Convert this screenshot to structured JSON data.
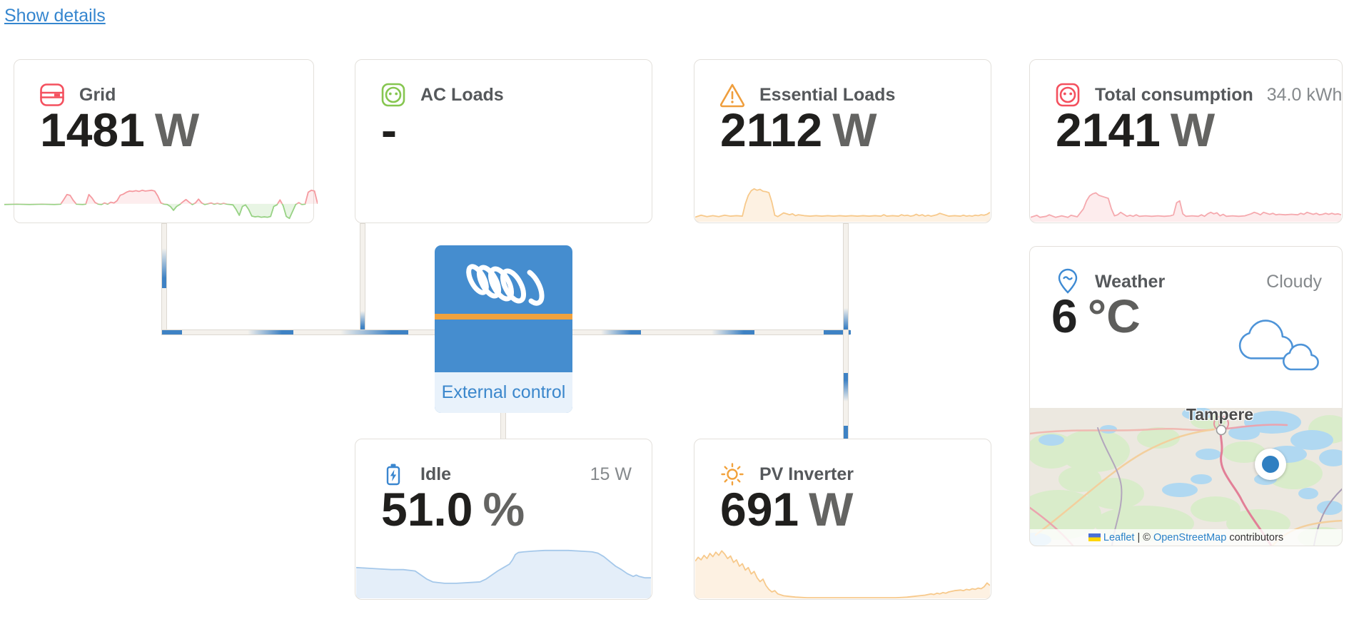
{
  "page": {
    "show_details": "Show details"
  },
  "cards": {
    "grid": {
      "title": "Grid",
      "value": "1481",
      "unit": "W"
    },
    "ac_loads": {
      "title": "AC Loads",
      "value": "-"
    },
    "essential_loads": {
      "title": "Essential Loads",
      "value": "2112",
      "unit": "W"
    },
    "total_consumption": {
      "title": "Total consumption",
      "secondary": "34.0 kWh",
      "value": "2141",
      "unit": "W"
    },
    "weather": {
      "title": "Weather",
      "condition": "Cloudy",
      "temp": "6",
      "temp_unit": "°C"
    },
    "idle": {
      "title": "Idle",
      "secondary": "15 W",
      "value": "51.0",
      "unit": "%"
    },
    "pv_inverter": {
      "title": "PV Inverter",
      "value": "691",
      "unit": "W"
    }
  },
  "inverter": {
    "label": "External control"
  },
  "map": {
    "city_label": "Tampere",
    "attribution": {
      "leaflet": "Leaflet",
      "separator": "| ©",
      "osm": "OpenStreetMap",
      "contributors": "contributors"
    }
  },
  "icons": {
    "grid": "distribution-panel",
    "ac_loads": "power-socket",
    "essential_loads": "warning-triangle",
    "total_consumption": "power-socket",
    "weather": "location-pin",
    "idle": "battery-bolt",
    "pv_inverter": "sun",
    "weather_graphic": "clouds",
    "inverter": "victron-coil-logo",
    "attribution_flag": "ukraine-flag"
  },
  "colors": {
    "link_blue": "#3586cf",
    "victron_blue": "#458dcf",
    "flow_blue": "#3e82c4",
    "grid_red": "#f4505e",
    "loads_green": "#86c650",
    "warning_orange": "#f0a13e",
    "sun_orange": "#f2a23c",
    "battery_blue": "#3a86cf",
    "stripe_orange": "#f0a23e"
  },
  "sparklines": {
    "grid": {
      "baseline": 55,
      "above": {
        "line": "#f59aa0",
        "fill": "rgba(245,154,160,0.18)"
      },
      "below": {
        "line": "#97d284",
        "fill": "rgba(151,210,132,0.22)"
      },
      "points": [
        [
          0,
          57
        ],
        [
          4,
          56
        ],
        [
          8,
          57
        ],
        [
          12,
          56
        ],
        [
          16,
          57
        ],
        [
          18,
          56
        ],
        [
          19,
          44
        ],
        [
          20,
          31
        ],
        [
          21,
          33
        ],
        [
          22,
          46
        ],
        [
          23,
          56
        ],
        [
          25,
          57
        ],
        [
          26,
          56
        ],
        [
          27,
          31
        ],
        [
          28,
          40
        ],
        [
          29,
          52
        ],
        [
          30,
          56
        ],
        [
          31,
          57
        ],
        [
          32,
          53
        ],
        [
          33,
          56
        ],
        [
          34,
          51
        ],
        [
          35,
          53
        ],
        [
          36,
          47
        ],
        [
          37,
          33
        ],
        [
          38,
          30
        ],
        [
          39,
          25
        ],
        [
          40,
          22
        ],
        [
          41,
          23
        ],
        [
          42,
          21
        ],
        [
          43,
          23
        ],
        [
          44,
          20
        ],
        [
          45,
          22
        ],
        [
          46,
          21
        ],
        [
          47,
          20
        ],
        [
          48,
          22
        ],
        [
          49,
          35
        ],
        [
          50,
          53
        ],
        [
          51,
          56
        ],
        [
          52,
          57
        ],
        [
          53,
          62
        ],
        [
          54,
          72
        ],
        [
          55,
          62
        ],
        [
          56,
          57
        ],
        [
          57,
          50
        ],
        [
          58,
          44
        ],
        [
          59,
          51
        ],
        [
          60,
          57
        ],
        [
          61,
          53
        ],
        [
          62,
          43
        ],
        [
          63,
          53
        ],
        [
          64,
          57
        ],
        [
          65,
          55
        ],
        [
          66,
          53
        ],
        [
          67,
          56
        ],
        [
          68,
          54
        ],
        [
          69,
          56
        ],
        [
          70,
          54
        ],
        [
          71,
          56
        ],
        [
          72,
          57
        ],
        [
          73,
          58
        ],
        [
          74,
          70
        ],
        [
          75,
          85
        ],
        [
          76,
          62
        ],
        [
          77,
          58
        ],
        [
          78,
          70
        ],
        [
          79,
          87
        ],
        [
          80,
          89
        ],
        [
          81,
          88
        ],
        [
          82,
          90
        ],
        [
          83,
          89
        ],
        [
          84,
          90
        ],
        [
          85,
          88
        ],
        [
          86,
          62
        ],
        [
          87,
          58
        ],
        [
          88,
          45
        ],
        [
          89,
          60
        ],
        [
          90,
          88
        ],
        [
          91,
          93
        ],
        [
          92,
          75
        ],
        [
          93,
          57
        ],
        [
          94,
          52
        ],
        [
          95,
          57
        ],
        [
          96,
          56
        ],
        [
          97,
          25
        ],
        [
          98,
          20
        ],
        [
          99,
          22
        ],
        [
          100,
          55
        ]
      ]
    },
    "essential": {
      "line": "#f7c98b",
      "fill": "rgba(247,201,139,0.25)",
      "points": [
        [
          0,
          90
        ],
        [
          2,
          86
        ],
        [
          4,
          89
        ],
        [
          6,
          87
        ],
        [
          8,
          89
        ],
        [
          10,
          86
        ],
        [
          12,
          88
        ],
        [
          14,
          87
        ],
        [
          16,
          88
        ],
        [
          17,
          62
        ],
        [
          18,
          44
        ],
        [
          19,
          34
        ],
        [
          20,
          30
        ],
        [
          21,
          33
        ],
        [
          22,
          31
        ],
        [
          23,
          35
        ],
        [
          24,
          36
        ],
        [
          25,
          38
        ],
        [
          26,
          58
        ],
        [
          27,
          86
        ],
        [
          28,
          89
        ],
        [
          29,
          85
        ],
        [
          30,
          81
        ],
        [
          31,
          83
        ],
        [
          32,
          85
        ],
        [
          33,
          83
        ],
        [
          34,
          87
        ],
        [
          35,
          85
        ],
        [
          37,
          87
        ],
        [
          39,
          88
        ],
        [
          41,
          87
        ],
        [
          43,
          88
        ],
        [
          45,
          87
        ],
        [
          47,
          88
        ],
        [
          49,
          87
        ],
        [
          51,
          88
        ],
        [
          53,
          87
        ],
        [
          55,
          88
        ],
        [
          57,
          87
        ],
        [
          59,
          88
        ],
        [
          61,
          87
        ],
        [
          63,
          88
        ],
        [
          64,
          85
        ],
        [
          65,
          88
        ],
        [
          67,
          87
        ],
        [
          69,
          88
        ],
        [
          70,
          85
        ],
        [
          71,
          87
        ],
        [
          72,
          86
        ],
        [
          73,
          88
        ],
        [
          74,
          87
        ],
        [
          75,
          84
        ],
        [
          76,
          87
        ],
        [
          77,
          85
        ],
        [
          78,
          88
        ],
        [
          79,
          86
        ],
        [
          80,
          88
        ],
        [
          82,
          85
        ],
        [
          83,
          82
        ],
        [
          84,
          84
        ],
        [
          85,
          86
        ],
        [
          86,
          88
        ],
        [
          88,
          87
        ],
        [
          90,
          88
        ],
        [
          91,
          86
        ],
        [
          92,
          88
        ],
        [
          93,
          87
        ],
        [
          94,
          88
        ],
        [
          95,
          86
        ],
        [
          96,
          87
        ],
        [
          97,
          85
        ],
        [
          98,
          86
        ],
        [
          99,
          84
        ],
        [
          100,
          80
        ]
      ]
    },
    "total": {
      "line": "#f5a9ae",
      "fill": "rgba(245,169,174,0.22)",
      "points": [
        [
          0,
          91
        ],
        [
          2,
          87
        ],
        [
          3,
          91
        ],
        [
          5,
          89
        ],
        [
          6,
          86
        ],
        [
          8,
          91
        ],
        [
          10,
          88
        ],
        [
          12,
          91
        ],
        [
          13,
          87
        ],
        [
          15,
          90
        ],
        [
          16,
          82
        ],
        [
          17,
          74
        ],
        [
          18,
          58
        ],
        [
          19,
          48
        ],
        [
          20,
          44
        ],
        [
          21,
          42
        ],
        [
          22,
          47
        ],
        [
          23,
          49
        ],
        [
          24,
          51
        ],
        [
          25,
          53
        ],
        [
          26,
          74
        ],
        [
          27,
          88
        ],
        [
          28,
          86
        ],
        [
          29,
          81
        ],
        [
          30,
          85
        ],
        [
          31,
          89
        ],
        [
          32,
          87
        ],
        [
          33,
          89
        ],
        [
          34,
          86
        ],
        [
          35,
          89
        ],
        [
          37,
          88
        ],
        [
          39,
          89
        ],
        [
          41,
          88
        ],
        [
          43,
          89
        ],
        [
          45,
          88
        ],
        [
          46,
          86
        ],
        [
          47,
          62
        ],
        [
          48,
          58
        ],
        [
          49,
          84
        ],
        [
          50,
          89
        ],
        [
          52,
          88
        ],
        [
          54,
          89
        ],
        [
          55,
          86
        ],
        [
          56,
          89
        ],
        [
          57,
          84
        ],
        [
          58,
          81
        ],
        [
          59,
          84
        ],
        [
          60,
          82
        ],
        [
          61,
          88
        ],
        [
          62,
          85
        ],
        [
          63,
          89
        ],
        [
          65,
          88
        ],
        [
          67,
          89
        ],
        [
          69,
          88
        ],
        [
          70,
          86
        ],
        [
          71,
          84
        ],
        [
          72,
          81
        ],
        [
          73,
          83
        ],
        [
          74,
          86
        ],
        [
          75,
          81
        ],
        [
          76,
          83
        ],
        [
          77,
          85
        ],
        [
          78,
          83
        ],
        [
          79,
          86
        ],
        [
          80,
          85
        ],
        [
          82,
          86
        ],
        [
          84,
          85
        ],
        [
          86,
          86
        ],
        [
          87,
          83
        ],
        [
          88,
          85
        ],
        [
          89,
          81
        ],
        [
          90,
          83
        ],
        [
          91,
          85
        ],
        [
          92,
          83
        ],
        [
          93,
          86
        ],
        [
          94,
          85
        ],
        [
          95,
          83
        ],
        [
          96,
          85
        ],
        [
          97,
          83
        ],
        [
          98,
          85
        ],
        [
          99,
          84
        ],
        [
          100,
          86
        ]
      ]
    },
    "idle": {
      "line": "#a5c8ea",
      "fill": "rgba(165,200,234,0.30)",
      "points": [
        [
          0,
          55
        ],
        [
          4,
          56
        ],
        [
          8,
          57
        ],
        [
          12,
          58
        ],
        [
          16,
          58
        ],
        [
          20,
          60
        ],
        [
          22,
          66
        ],
        [
          24,
          72
        ],
        [
          26,
          76
        ],
        [
          30,
          78
        ],
        [
          34,
          78
        ],
        [
          38,
          77
        ],
        [
          42,
          76
        ],
        [
          44,
          72
        ],
        [
          46,
          66
        ],
        [
          48,
          60
        ],
        [
          50,
          55
        ],
        [
          52,
          50
        ],
        [
          53,
          44
        ],
        [
          54,
          36
        ],
        [
          55,
          33
        ],
        [
          57,
          32
        ],
        [
          60,
          31
        ],
        [
          64,
          30
        ],
        [
          68,
          30
        ],
        [
          72,
          30
        ],
        [
          76,
          31
        ],
        [
          80,
          32
        ],
        [
          82,
          34
        ],
        [
          84,
          39
        ],
        [
          86,
          46
        ],
        [
          88,
          53
        ],
        [
          90,
          58
        ],
        [
          91,
          61
        ],
        [
          92,
          64
        ],
        [
          93,
          66
        ],
        [
          94,
          68
        ],
        [
          95,
          66
        ],
        [
          96,
          68
        ],
        [
          98,
          70
        ],
        [
          100,
          70
        ]
      ]
    },
    "pv": {
      "line": "#f7c98b",
      "fill": "rgba(247,201,139,0.25)",
      "points": [
        [
          0,
          42
        ],
        [
          1,
          36
        ],
        [
          2,
          40
        ],
        [
          3,
          33
        ],
        [
          4,
          38
        ],
        [
          5,
          30
        ],
        [
          6,
          35
        ],
        [
          7,
          28
        ],
        [
          8,
          33
        ],
        [
          9,
          26
        ],
        [
          10,
          31
        ],
        [
          11,
          38
        ],
        [
          12,
          34
        ],
        [
          13,
          44
        ],
        [
          14,
          40
        ],
        [
          15,
          50
        ],
        [
          16,
          46
        ],
        [
          17,
          56
        ],
        [
          18,
          52
        ],
        [
          19,
          62
        ],
        [
          20,
          58
        ],
        [
          21,
          68
        ],
        [
          22,
          74
        ],
        [
          23,
          70
        ],
        [
          24,
          80
        ],
        [
          25,
          86
        ],
        [
          26,
          90
        ],
        [
          27,
          88
        ],
        [
          28,
          93
        ],
        [
          30,
          96
        ],
        [
          32,
          97
        ],
        [
          34,
          98
        ],
        [
          38,
          99
        ],
        [
          45,
          99
        ],
        [
          52,
          99
        ],
        [
          60,
          99
        ],
        [
          68,
          99
        ],
        [
          72,
          98
        ],
        [
          74,
          97
        ],
        [
          76,
          96
        ],
        [
          78,
          95
        ],
        [
          80,
          93
        ],
        [
          81,
          94
        ],
        [
          82,
          92
        ],
        [
          83,
          93
        ],
        [
          84,
          91
        ],
        [
          85,
          92
        ],
        [
          86,
          90
        ],
        [
          88,
          88
        ],
        [
          90,
          87
        ],
        [
          91,
          88
        ],
        [
          92,
          86
        ],
        [
          93,
          87
        ],
        [
          94,
          85
        ],
        [
          95,
          86
        ],
        [
          96,
          84
        ],
        [
          97,
          85
        ],
        [
          98,
          82
        ],
        [
          99,
          76
        ],
        [
          100,
          80
        ]
      ]
    }
  }
}
